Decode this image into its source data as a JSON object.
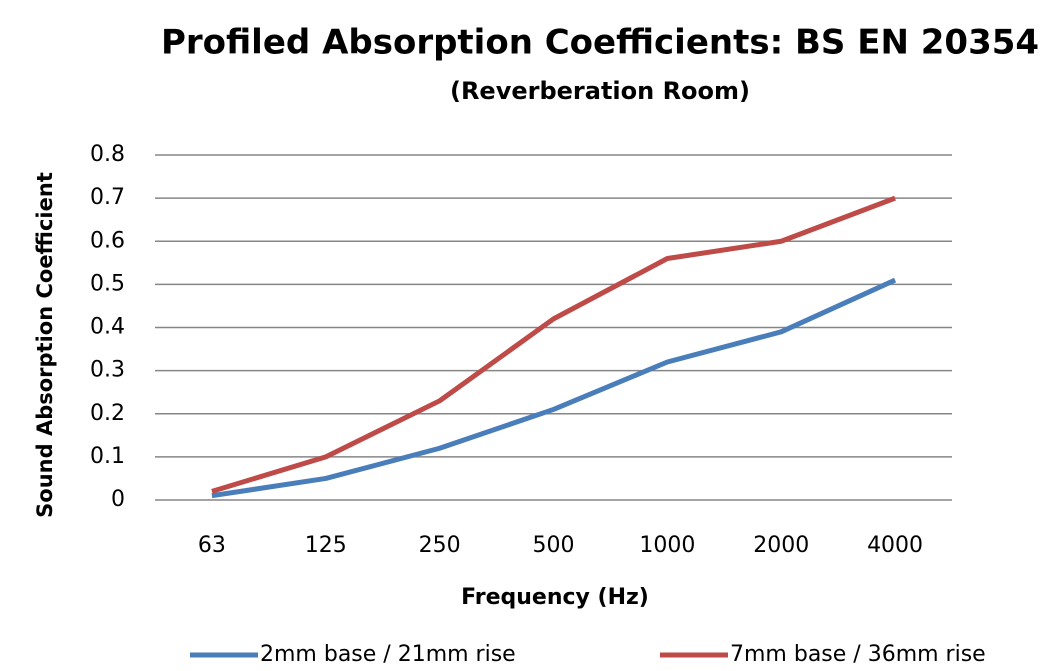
{
  "chart_data": {
    "type": "line",
    "title": "Profiled Absorption Coefficients: BS EN 20354",
    "subtitle": "(Reverberation Room)",
    "x_label": "Frequency (Hz)",
    "y_label": "Sound Absorption Coefficient",
    "categories": [
      "63",
      "125",
      "250",
      "500",
      "1000",
      "2000",
      "4000"
    ],
    "series": [
      {
        "name": "2mm base / 21mm rise",
        "color": "#4a7ebb",
        "values": [
          0.01,
          0.05,
          0.12,
          0.21,
          0.32,
          0.39,
          0.51
        ]
      },
      {
        "name": "7mm base / 36mm rise",
        "color": "#be4b48",
        "values": [
          0.02,
          0.1,
          0.23,
          0.42,
          0.56,
          0.6,
          0.7
        ]
      }
    ],
    "ylim": [
      0,
      0.8
    ],
    "yticks": [
      0,
      0.1,
      0.2,
      0.3,
      0.4,
      0.5,
      0.6,
      0.7,
      0.8
    ],
    "grid": true,
    "legend": "bottom"
  }
}
